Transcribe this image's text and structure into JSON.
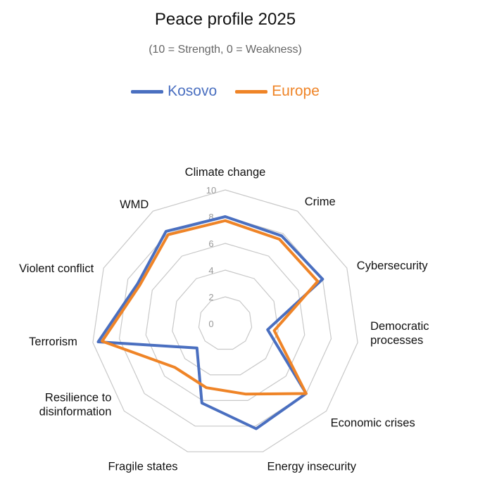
{
  "chart_data": {
    "type": "radar",
    "title": "Peace profile 2025",
    "subtitle": "(10 = Strength, 0 = Weakness)",
    "categories": [
      "Climate change",
      "Crime",
      "Cybersecurity",
      "Democratic processes",
      "Economic crises",
      "Energy insecurity",
      "Fragile states",
      "Resilience to disinformation",
      "Terrorism",
      "Violent conflict",
      "WMD"
    ],
    "category_label_lines": [
      [
        "Climate change"
      ],
      [
        "Crime"
      ],
      [
        "Cybersecurity"
      ],
      [
        "Democratic",
        "processes"
      ],
      [
        "Economic crises"
      ],
      [
        "Energy insecurity"
      ],
      [
        "Fragile states"
      ],
      [
        "Resilience to",
        "disinformation"
      ],
      [
        "Terrorism"
      ],
      [
        "Violent conflict"
      ],
      [
        "WMD"
      ]
    ],
    "rticks": [
      "0",
      "2",
      "4",
      "6",
      "8",
      "10"
    ],
    "rlim": [
      0,
      10
    ],
    "legend_position": "top-center",
    "series": [
      {
        "name": "Kosovo",
        "color": "#4a6fc0",
        "values": [
          8.0,
          7.8,
          8.0,
          3.2,
          8.0,
          8.2,
          6.2,
          2.8,
          9.6,
          7.2,
          8.2
        ]
      },
      {
        "name": "Europe",
        "color": "#ef8427",
        "values": [
          7.7,
          7.5,
          7.6,
          3.7,
          8.0,
          5.5,
          5.0,
          5.0,
          9.3,
          7.0,
          7.9
        ]
      }
    ]
  }
}
